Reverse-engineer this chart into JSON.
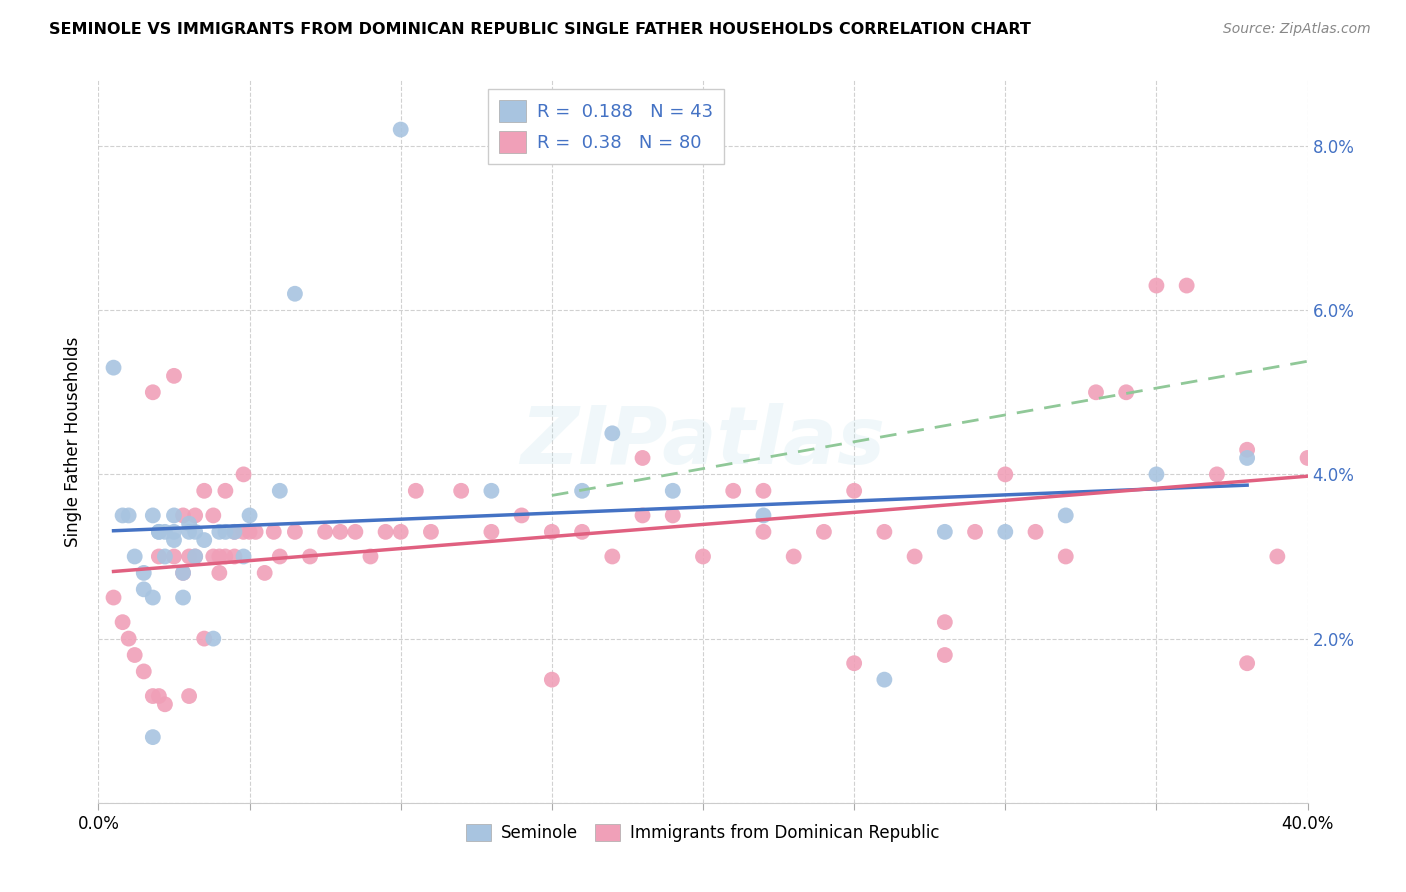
{
  "title": "SEMINOLE VS IMMIGRANTS FROM DOMINICAN REPUBLIC SINGLE FATHER HOUSEHOLDS CORRELATION CHART",
  "source": "Source: ZipAtlas.com",
  "ylabel": "Single Father Households",
  "xlim": [
    0.0,
    0.4
  ],
  "ylim": [
    0.0,
    0.088
  ],
  "xticks": [
    0.0,
    0.05,
    0.1,
    0.15,
    0.2,
    0.25,
    0.3,
    0.35,
    0.4
  ],
  "yticks": [
    0.0,
    0.02,
    0.04,
    0.06,
    0.08
  ],
  "ytick_right_labels": [
    "",
    "2.0%",
    "4.0%",
    "6.0%",
    "8.0%"
  ],
  "xtick_labels": [
    "0.0%",
    "",
    "",
    "",
    "",
    "",
    "",
    "",
    "40.0%"
  ],
  "blue_R": 0.188,
  "blue_N": 43,
  "pink_R": 0.38,
  "pink_N": 80,
  "blue_color": "#a8c4e0",
  "pink_color": "#f0a0b8",
  "blue_line_color": "#4472c4",
  "pink_line_color": "#e06080",
  "dashed_line_color": "#90c898",
  "legend_label_blue": "Seminole",
  "legend_label_pink": "Immigrants from Dominican Republic",
  "watermark_text": "ZIPatlas",
  "blue_scatter_x": [
    0.005,
    0.008,
    0.01,
    0.012,
    0.015,
    0.015,
    0.018,
    0.018,
    0.02,
    0.02,
    0.022,
    0.022,
    0.025,
    0.025,
    0.025,
    0.028,
    0.028,
    0.03,
    0.03,
    0.032,
    0.032,
    0.035,
    0.038,
    0.04,
    0.042,
    0.045,
    0.048,
    0.05,
    0.06,
    0.065,
    0.018,
    0.1,
    0.13,
    0.16,
    0.17,
    0.19,
    0.22,
    0.26,
    0.28,
    0.3,
    0.32,
    0.35,
    0.38
  ],
  "blue_scatter_y": [
    0.053,
    0.035,
    0.035,
    0.03,
    0.028,
    0.026,
    0.025,
    0.035,
    0.033,
    0.033,
    0.03,
    0.033,
    0.032,
    0.033,
    0.035,
    0.025,
    0.028,
    0.033,
    0.034,
    0.03,
    0.033,
    0.032,
    0.02,
    0.033,
    0.033,
    0.033,
    0.03,
    0.035,
    0.038,
    0.062,
    0.008,
    0.082,
    0.038,
    0.038,
    0.045,
    0.038,
    0.035,
    0.015,
    0.033,
    0.033,
    0.035,
    0.04,
    0.042
  ],
  "pink_scatter_x": [
    0.005,
    0.008,
    0.01,
    0.012,
    0.015,
    0.018,
    0.018,
    0.02,
    0.02,
    0.022,
    0.025,
    0.025,
    0.028,
    0.028,
    0.03,
    0.03,
    0.032,
    0.032,
    0.035,
    0.035,
    0.038,
    0.038,
    0.04,
    0.04,
    0.042,
    0.042,
    0.045,
    0.045,
    0.048,
    0.048,
    0.05,
    0.052,
    0.055,
    0.058,
    0.06,
    0.065,
    0.07,
    0.075,
    0.08,
    0.085,
    0.09,
    0.095,
    0.1,
    0.105,
    0.11,
    0.12,
    0.13,
    0.14,
    0.15,
    0.16,
    0.17,
    0.18,
    0.19,
    0.2,
    0.21,
    0.22,
    0.23,
    0.24,
    0.25,
    0.26,
    0.27,
    0.28,
    0.29,
    0.3,
    0.31,
    0.32,
    0.33,
    0.34,
    0.35,
    0.36,
    0.37,
    0.38,
    0.39,
    0.4,
    0.15,
    0.18,
    0.22,
    0.25,
    0.28,
    0.38
  ],
  "pink_scatter_y": [
    0.025,
    0.022,
    0.02,
    0.018,
    0.016,
    0.013,
    0.05,
    0.013,
    0.03,
    0.012,
    0.03,
    0.052,
    0.028,
    0.035,
    0.03,
    0.013,
    0.03,
    0.035,
    0.038,
    0.02,
    0.035,
    0.03,
    0.03,
    0.028,
    0.03,
    0.038,
    0.033,
    0.03,
    0.033,
    0.04,
    0.033,
    0.033,
    0.028,
    0.033,
    0.03,
    0.033,
    0.03,
    0.033,
    0.033,
    0.033,
    0.03,
    0.033,
    0.033,
    0.038,
    0.033,
    0.038,
    0.033,
    0.035,
    0.033,
    0.033,
    0.03,
    0.035,
    0.035,
    0.03,
    0.038,
    0.033,
    0.03,
    0.033,
    0.038,
    0.033,
    0.03,
    0.022,
    0.033,
    0.04,
    0.033,
    0.03,
    0.05,
    0.05,
    0.063,
    0.063,
    0.04,
    0.043,
    0.03,
    0.042,
    0.015,
    0.042,
    0.038,
    0.017,
    0.018,
    0.017
  ]
}
